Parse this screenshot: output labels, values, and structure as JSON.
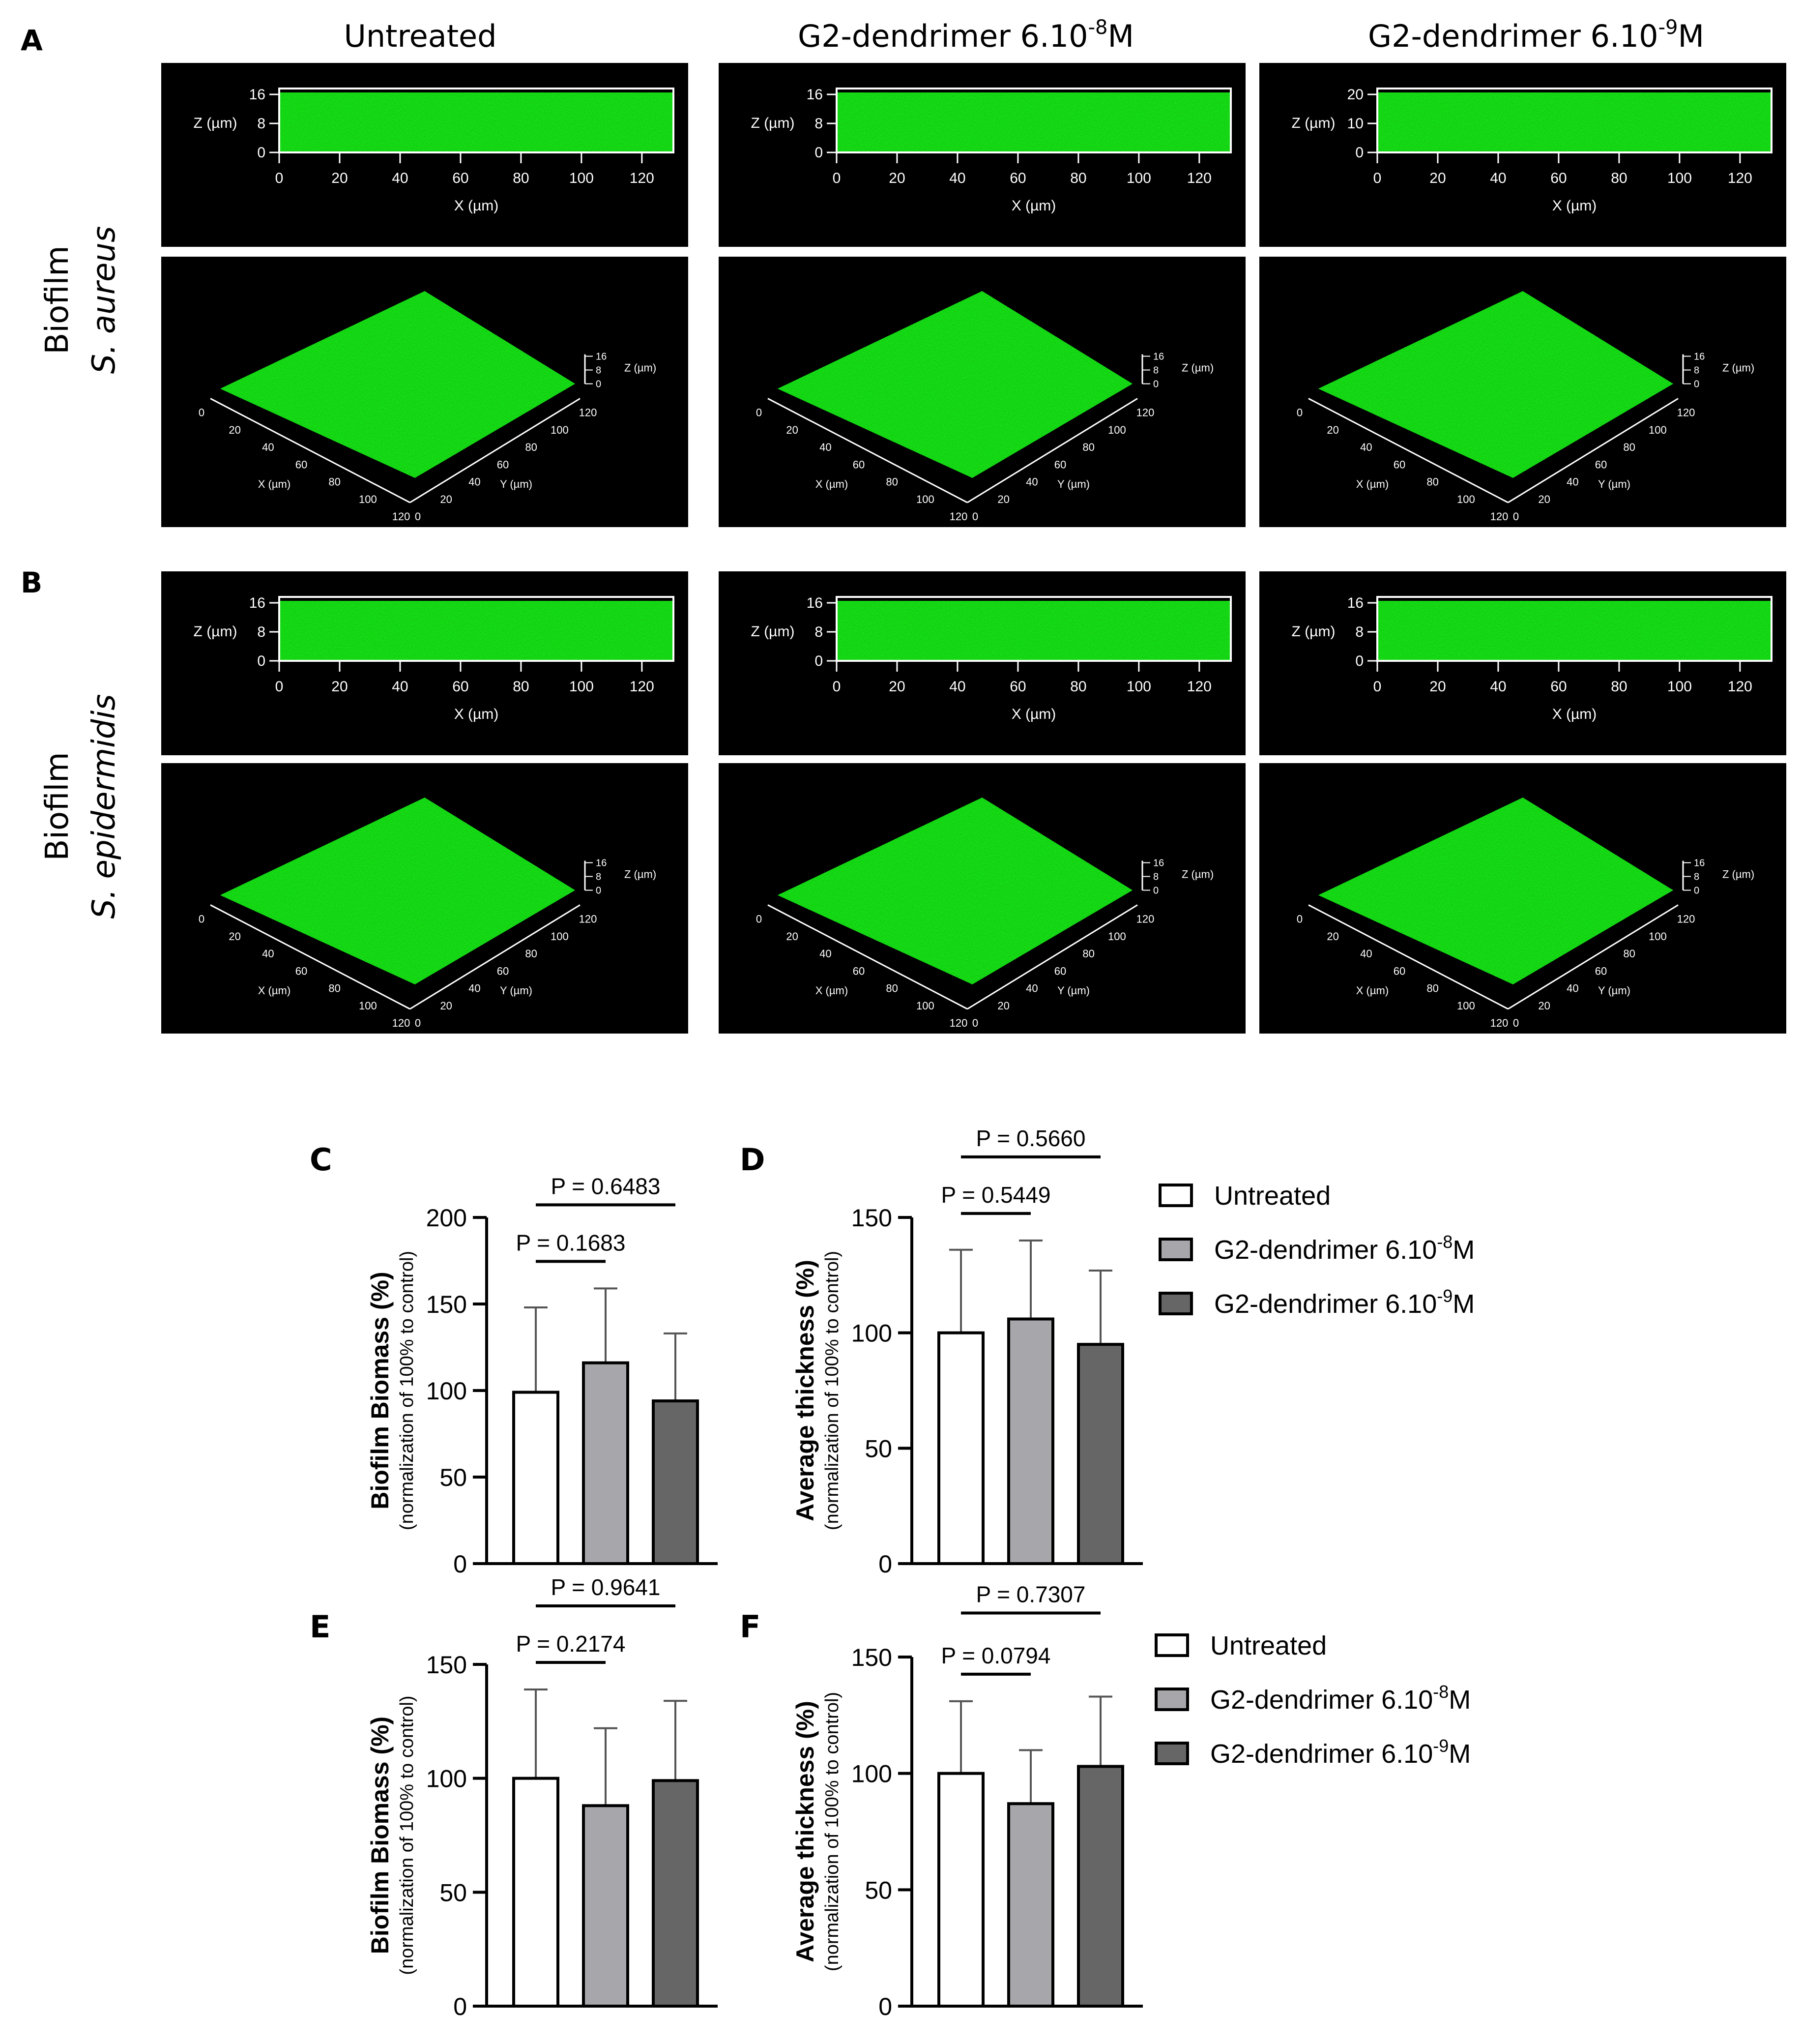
{
  "panel_letters": [
    "A",
    "B",
    "C",
    "D",
    "E",
    "F"
  ],
  "columns": [
    {
      "name": "Untreated",
      "sup": "",
      "unit": ""
    },
    {
      "name": "G2-dendrimer 6.10",
      "sup": "-8",
      "unit": "M"
    },
    {
      "name": "G2-dendrimer 6.10",
      "sup": "-9",
      "unit": "M"
    }
  ],
  "rows": [
    {
      "line1": "Biofilm",
      "line2": "S. aureus"
    },
    {
      "line1": "Biofilm",
      "line2": "S. epidermidis"
    }
  ],
  "microscopy": {
    "z_axis_label": "Z (µm)",
    "x_axis_label": "X (µm)",
    "y_axis_label": "Y (µm)",
    "x_ticks": [
      "0",
      "20",
      "40",
      "60",
      "80",
      "100",
      "120"
    ],
    "z_ticks_16": [
      "0",
      "8",
      "16"
    ],
    "z_ticks_20": [
      "0",
      "10",
      "20"
    ],
    "z_ticks_3d": [
      "0",
      "8",
      "16"
    ],
    "biofilm_color": "#2ee62e"
  },
  "legend": {
    "items": [
      {
        "label": "Untreated",
        "sup": "",
        "unit": "",
        "color": "#ffffff"
      },
      {
        "label": "G2-dendrimer 6.10",
        "sup": "-8",
        "unit": "M",
        "color": "#a7a6ab"
      },
      {
        "label": "G2-dendrimer 6.10",
        "sup": "-9",
        "unit": "M",
        "color": "#666666"
      }
    ]
  },
  "chart_data": [
    {
      "panel": "C",
      "type": "bar",
      "categories": [
        "Untreated",
        "G2-dendrimer 6.10-8M",
        "G2-dendrimer 6.10-9M"
      ],
      "values": [
        99,
        116,
        94
      ],
      "errors": [
        49,
        43,
        39
      ],
      "ylabel": "Biofilm Biomass (%)",
      "ylabel2": "(normalization of 100% to control)",
      "ylim": [
        0,
        200
      ],
      "yticks": [
        0,
        50,
        100,
        150,
        200
      ],
      "pvalues": [
        {
          "label": "P = 0.1683",
          "from": 0,
          "to": 1
        },
        {
          "label": "P = 0.6483",
          "from": 0,
          "to": 2
        }
      ]
    },
    {
      "panel": "D",
      "type": "bar",
      "categories": [
        "Untreated",
        "G2-dendrimer 6.10-8M",
        "G2-dendrimer 6.10-9M"
      ],
      "values": [
        100,
        106,
        95
      ],
      "errors": [
        36,
        34,
        32
      ],
      "ylabel": "Average thickness (%)",
      "ylabel2": "(normalization of 100% to control)",
      "ylim": [
        0,
        150
      ],
      "yticks": [
        0,
        50,
        100,
        150
      ],
      "pvalues": [
        {
          "label": "P = 0.5449",
          "from": 0,
          "to": 1
        },
        {
          "label": "P = 0.5660",
          "from": 0,
          "to": 2
        }
      ]
    },
    {
      "panel": "E",
      "type": "bar",
      "categories": [
        "Untreated",
        "G2-dendrimer 6.10-8M",
        "G2-dendrimer 6.10-9M"
      ],
      "values": [
        100,
        88,
        99
      ],
      "errors": [
        39,
        34,
        35
      ],
      "ylabel": "Biofilm Biomass (%)",
      "ylabel2": "(normalization of 100% to control)",
      "ylim": [
        0,
        150
      ],
      "yticks": [
        0,
        50,
        100,
        150
      ],
      "pvalues": [
        {
          "label": "P = 0.2174",
          "from": 0,
          "to": 1
        },
        {
          "label": "P = 0.9641",
          "from": 0,
          "to": 2
        }
      ]
    },
    {
      "panel": "F",
      "type": "bar",
      "categories": [
        "Untreated",
        "G2-dendrimer 6.10-8M",
        "G2-dendrimer 6.10-9M"
      ],
      "values": [
        100,
        87,
        103
      ],
      "errors": [
        31,
        23,
        30
      ],
      "ylabel": "Average thickness (%)",
      "ylabel2": "(normalization of 100% to control)",
      "ylim": [
        0,
        150
      ],
      "yticks": [
        0,
        50,
        100,
        150
      ],
      "pvalues": [
        {
          "label": "P = 0.0794",
          "from": 0,
          "to": 1
        },
        {
          "label": "P = 0.7307",
          "from": 0,
          "to": 2
        }
      ]
    }
  ]
}
